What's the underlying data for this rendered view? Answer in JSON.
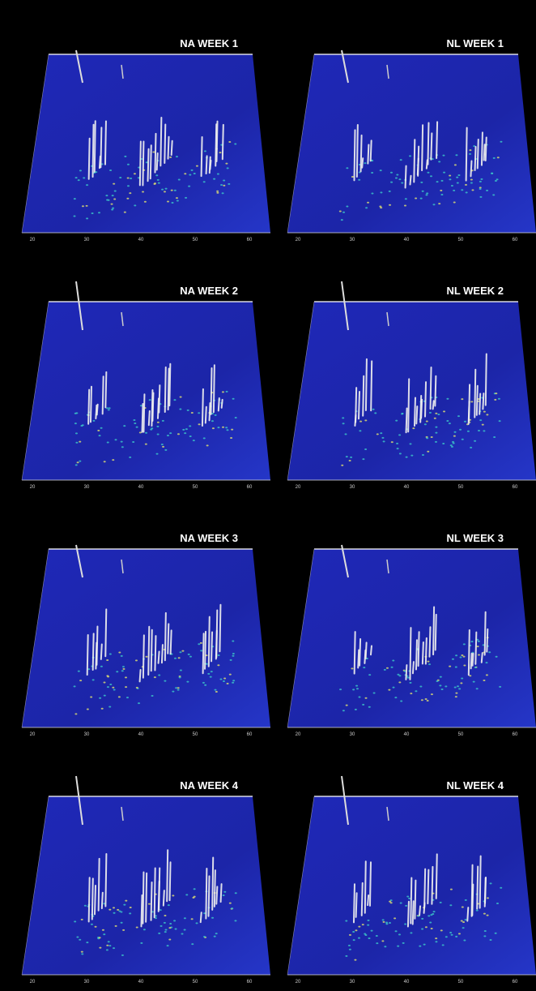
{
  "panels": [
    {
      "title": "NA WEEK 1"
    },
    {
      "title": "NL WEEK 1"
    },
    {
      "title": "NA WEEK 2"
    },
    {
      "title": "NL WEEK 2"
    },
    {
      "title": "NA WEEK 3"
    },
    {
      "title": "NL WEEK 3"
    },
    {
      "title": "NA WEEK 4"
    },
    {
      "title": "NL WEEK 4"
    }
  ],
  "x_tick_labels": [
    "20",
    "30",
    "40",
    "50",
    "60"
  ]
}
